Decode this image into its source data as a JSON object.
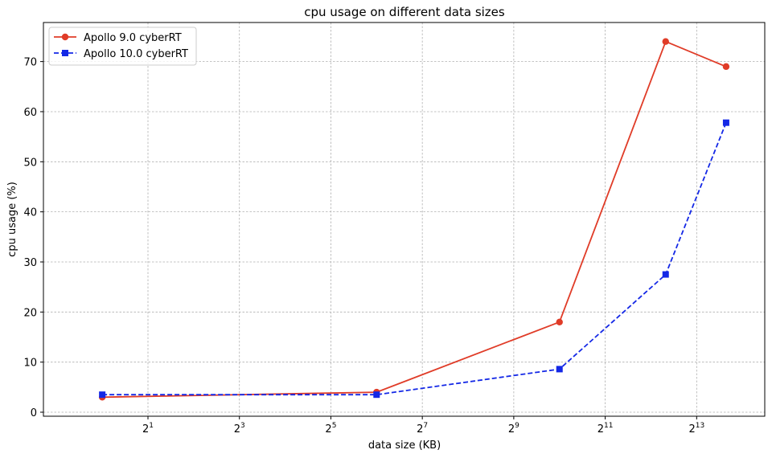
{
  "chart_data": {
    "type": "line",
    "title": "cpu usage on different data sizes",
    "xlabel": "data size (KB)",
    "ylabel": "cpu usage (%)",
    "xscale": "log2",
    "xlim": [
      0.41,
      23000
    ],
    "ylim": [
      -0.8,
      77.8
    ],
    "x_ticks": [
      {
        "value": 2,
        "base": "2",
        "exp": "1"
      },
      {
        "value": 8,
        "base": "2",
        "exp": "3"
      },
      {
        "value": 32,
        "base": "2",
        "exp": "5"
      },
      {
        "value": 128,
        "base": "2",
        "exp": "7"
      },
      {
        "value": 512,
        "base": "2",
        "exp": "9"
      },
      {
        "value": 2048,
        "base": "2",
        "exp": "11"
      },
      {
        "value": 8192,
        "base": "2",
        "exp": "13"
      }
    ],
    "y_ticks": [
      "0",
      "10",
      "20",
      "30",
      "40",
      "50",
      "60",
      "70"
    ],
    "grid": true,
    "legend_position": "top-left",
    "x": [
      1,
      64,
      1024,
      5120,
      12800
    ],
    "series": [
      {
        "name": "Apollo 9.0 cyberRT",
        "values": [
          3.0,
          4.0,
          18.0,
          74.0,
          69.0
        ],
        "color": "#e03c28",
        "marker": "circle",
        "linestyle": "solid"
      },
      {
        "name": "Apollo 10.0 cyberRT",
        "values": [
          3.5,
          3.5,
          8.6,
          27.5,
          57.8
        ],
        "color": "#1428e6",
        "marker": "square",
        "linestyle": "dashed"
      }
    ]
  }
}
